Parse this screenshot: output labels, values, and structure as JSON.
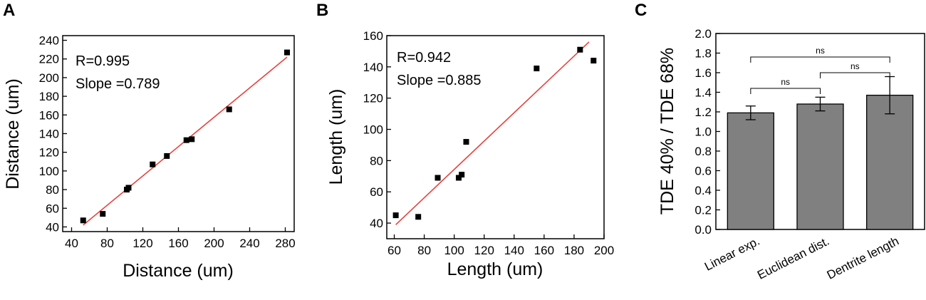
{
  "chart_data": [
    {
      "panel": "A",
      "type": "scatter",
      "xlabel": "Distance (um)",
      "ylabel": "Distance (um)",
      "xlim": [
        30,
        290
      ],
      "ylim": [
        35,
        245
      ],
      "xticks": [
        40,
        80,
        120,
        160,
        200,
        240,
        280
      ],
      "yticks": [
        40,
        60,
        80,
        100,
        120,
        140,
        160,
        180,
        200,
        220,
        240
      ],
      "annotations": [
        "R=0.995",
        "Slope =0.789"
      ],
      "points": [
        {
          "x": 53,
          "y": 47
        },
        {
          "x": 75,
          "y": 54
        },
        {
          "x": 102,
          "y": 80
        },
        {
          "x": 104,
          "y": 82
        },
        {
          "x": 131,
          "y": 107
        },
        {
          "x": 147,
          "y": 116
        },
        {
          "x": 169,
          "y": 133
        },
        {
          "x": 175,
          "y": 134
        },
        {
          "x": 217,
          "y": 166
        },
        {
          "x": 282,
          "y": 227
        }
      ],
      "fit": {
        "x": [
          53,
          282
        ],
        "y": [
          42,
          222
        ]
      },
      "colors": {
        "points": "#000000",
        "fit": "#e8413c"
      }
    },
    {
      "panel": "B",
      "type": "scatter",
      "xlabel": "Length (um)",
      "ylabel": "Length (um)",
      "xlim": [
        55,
        200
      ],
      "ylim": [
        30,
        160
      ],
      "xticks": [
        60,
        80,
        100,
        120,
        140,
        160,
        180,
        200
      ],
      "yticks": [
        40,
        60,
        80,
        100,
        120,
        140,
        160
      ],
      "annotations": [
        "R=0.942",
        "Slope =0.885"
      ],
      "points": [
        {
          "x": 61,
          "y": 45
        },
        {
          "x": 76,
          "y": 44
        },
        {
          "x": 89,
          "y": 69
        },
        {
          "x": 103,
          "y": 69
        },
        {
          "x": 105,
          "y": 71
        },
        {
          "x": 108,
          "y": 92
        },
        {
          "x": 155,
          "y": 139
        },
        {
          "x": 184,
          "y": 151
        },
        {
          "x": 193,
          "y": 144
        }
      ],
      "fit": {
        "x": [
          61,
          190
        ],
        "y": [
          39,
          156
        ]
      },
      "colors": {
        "points": "#000000",
        "fit": "#e8413c"
      }
    },
    {
      "panel": "C",
      "type": "bar",
      "ylabel": "TDE 40% / TDE 68%",
      "categories": [
        "Linear exp.",
        "Euclidean dist.",
        "Dentrite length"
      ],
      "values": [
        1.19,
        1.28,
        1.37
      ],
      "errors": [
        0.07,
        0.07,
        0.19
      ],
      "ylim": [
        0,
        2.0
      ],
      "yticks": [
        "0.0",
        "0.2",
        "0.4",
        "0.6",
        "0.8",
        "1.0",
        "1.2",
        "1.4",
        "1.6",
        "1.8",
        "2.0"
      ],
      "significance": [
        {
          "from": 0,
          "to": 1,
          "label": "ns"
        },
        {
          "from": 1,
          "to": 2,
          "label": "ns"
        },
        {
          "from": 0,
          "to": 2,
          "label": "ns"
        }
      ],
      "colors": {
        "bar": "#808080"
      }
    }
  ]
}
